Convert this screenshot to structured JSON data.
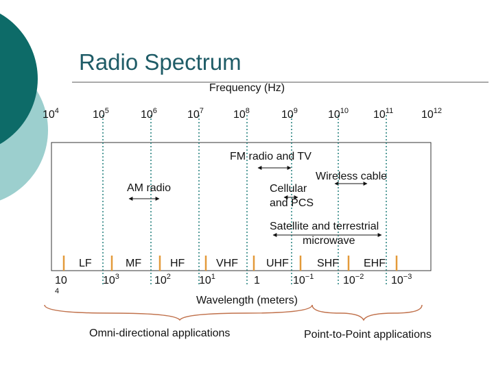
{
  "title": "Radio Spectrum",
  "frequency_axis": {
    "label": "Frequency (Hz)",
    "ticks": [
      {
        "base": "10",
        "exponent": "4"
      },
      {
        "base": "10",
        "exponent": "5"
      },
      {
        "base": "10",
        "exponent": "6"
      },
      {
        "base": "10",
        "exponent": "7"
      },
      {
        "base": "10",
        "exponent": "8"
      },
      {
        "base": "10",
        "exponent": "9"
      },
      {
        "base": "10",
        "exponent": "10"
      },
      {
        "base": "10",
        "exponent": "11"
      },
      {
        "base": "10",
        "exponent": "12"
      }
    ]
  },
  "services": [
    {
      "lines": [
        "FM radio and TV"
      ]
    },
    {
      "lines": [
        "Wireless cable"
      ]
    },
    {
      "lines": [
        "AM radio"
      ]
    },
    {
      "lines": [
        "Cellular",
        "and PCS"
      ]
    },
    {
      "lines": [
        "Satellite and terrestrial",
        "microwave"
      ]
    }
  ],
  "bands": [
    "LF",
    "MF",
    "HF",
    "VHF",
    "UHF",
    "SHF",
    "EHF"
  ],
  "wavelength_axis": {
    "label": "Wavelength (meters)",
    "ticks": [
      {
        "base": "10",
        "exponent": "4"
      },
      {
        "base": "10",
        "exponent": "3"
      },
      {
        "base": "10",
        "exponent": "2"
      },
      {
        "base": "10",
        "exponent": "1"
      },
      {
        "base": "1"
      },
      {
        "base": "10",
        "exponent": "−1"
      },
      {
        "base": "10",
        "exponent": "−2"
      },
      {
        "base": "10",
        "exponent": "−3"
      }
    ]
  },
  "applications": [
    "Omni-directional applications",
    "Point-to-Point applications"
  ]
}
